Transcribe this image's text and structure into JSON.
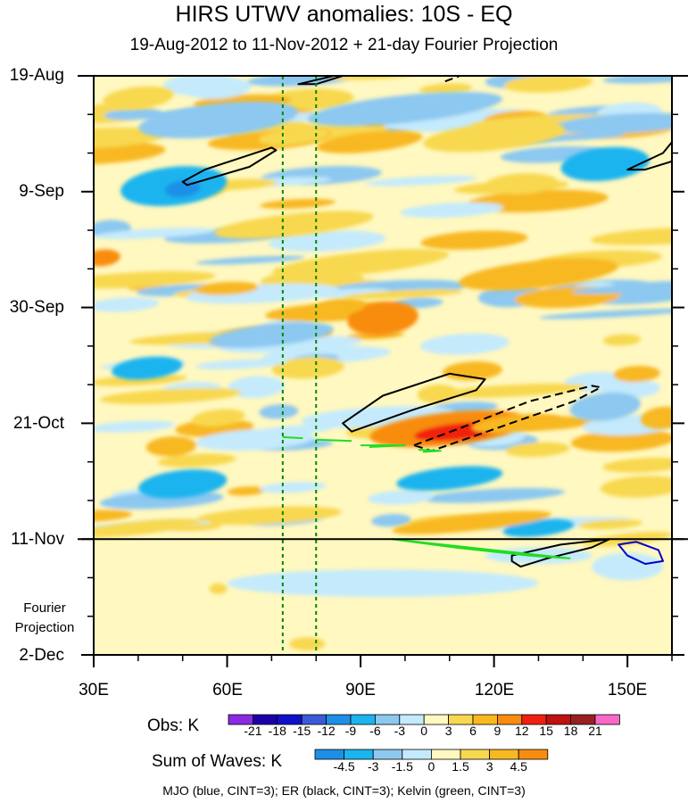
{
  "colors": {
    "obs": [
      "#8a2be2",
      "#1a00a8",
      "#1010cc",
      "#3a5ad8",
      "#1e8fe6",
      "#1ab4ee",
      "#8cc8f0",
      "#c4eafc",
      "#fff8c0",
      "#f8d850",
      "#f8b820",
      "#f88c10",
      "#f02010",
      "#c01010",
      "#982020",
      "#f868c8"
    ],
    "waves": [
      "#1e8fe6",
      "#1ab4ee",
      "#8cc8f0",
      "#c4eafc",
      "#fff8c0",
      "#f8d850",
      "#f8b820",
      "#f88c10"
    ],
    "mjo": "#0000cc",
    "er": "#000000",
    "kelvin": "#22dd22",
    "meridian": "#008800"
  },
  "chart_data": {
    "type": "heatmap",
    "title": "HIRS UTWV anomalies: 10S - EQ",
    "subtitle": "19-Aug-2012 to 11-Nov-2012 + 21-day Fourier Projection",
    "x_axis": {
      "range": [
        30,
        160
      ],
      "ticks": [
        {
          "value": 30,
          "label": "30E"
        },
        {
          "value": 60,
          "label": "60E"
        },
        {
          "value": 90,
          "label": "90E"
        },
        {
          "value": 120,
          "label": "120E"
        },
        {
          "value": 150,
          "label": "150E"
        }
      ],
      "minor_step": 10
    },
    "y_axis": {
      "range_days": [
        0,
        105
      ],
      "ticks": [
        {
          "day": 0,
          "label": "19-Aug"
        },
        {
          "day": 21,
          "label": "9-Sep"
        },
        {
          "day": 42,
          "label": "30-Sep"
        },
        {
          "day": 63,
          "label": "21-Oct"
        },
        {
          "day": 84,
          "label": "11-Nov"
        },
        {
          "day": 105,
          "label": "2-Dec"
        }
      ],
      "minor_step_days": 7,
      "projection_start_day": 84,
      "projection_label": "Fourier Projection"
    },
    "reference_lines_lon": [
      72.5,
      80
    ],
    "obs_blobs": [
      {
        "lon": 48,
        "day": 20,
        "rlon": 12,
        "rday": 3.5,
        "cls": 5
      },
      {
        "lon": 50,
        "day": 20.5,
        "rlon": 4,
        "rday": 1.5,
        "cls": 4
      },
      {
        "lon": 58,
        "day": 8,
        "rlon": 18,
        "rday": 3,
        "cls": 6
      },
      {
        "lon": 100,
        "day": 6,
        "rlon": 22,
        "rday": 2.5,
        "cls": 6
      },
      {
        "lon": 145,
        "day": 16,
        "rlon": 10,
        "rday": 3,
        "cls": 5
      },
      {
        "lon": 42,
        "day": 53,
        "rlon": 8,
        "rday": 2,
        "cls": 5
      },
      {
        "lon": 50,
        "day": 74,
        "rlon": 10,
        "rday": 2.5,
        "cls": 5
      },
      {
        "lon": 110,
        "day": 73,
        "rlon": 12,
        "rday": 2,
        "cls": 5
      },
      {
        "lon": 130,
        "day": 82,
        "rlon": 8,
        "rday": 1.5,
        "cls": 5
      },
      {
        "lon": 70,
        "day": 47,
        "rlon": 14,
        "rday": 2,
        "cls": 6
      },
      {
        "lon": 145,
        "day": 60,
        "rlon": 8,
        "rday": 2.5,
        "cls": 6
      },
      {
        "lon": 40,
        "day": 4,
        "rlon": 8,
        "rday": 2,
        "cls": 9
      },
      {
        "lon": 75,
        "day": 11,
        "rlon": 8,
        "rday": 1.5,
        "cls": 9
      },
      {
        "lon": 92,
        "day": 12,
        "rlon": 12,
        "rday": 1.8,
        "cls": 10
      },
      {
        "lon": 120,
        "day": 11,
        "rlon": 16,
        "rday": 2.5,
        "cls": 9
      },
      {
        "lon": 75,
        "day": 27,
        "rlon": 18,
        "rday": 2,
        "cls": 9
      },
      {
        "lon": 90,
        "day": 34,
        "rlon": 20,
        "rday": 2,
        "cls": 9
      },
      {
        "lon": 130,
        "day": 36,
        "rlon": 18,
        "rday": 2.5,
        "cls": 10
      },
      {
        "lon": 32,
        "day": 33,
        "rlon": 4,
        "rday": 1.5,
        "cls": 11
      },
      {
        "lon": 95,
        "day": 44,
        "rlon": 8,
        "rday": 3,
        "cls": 11
      },
      {
        "lon": 85,
        "day": 42,
        "rlon": 6,
        "rday": 1.5,
        "cls": 10
      },
      {
        "lon": 110,
        "day": 64,
        "rlon": 18,
        "rday": 3,
        "cls": 11
      },
      {
        "lon": 112,
        "day": 64.5,
        "rlon": 10,
        "rday": 1.5,
        "cls": 12
      },
      {
        "lon": 125,
        "day": 63,
        "rlon": 10,
        "rday": 1.5,
        "cls": 10
      },
      {
        "lon": 158,
        "day": 62,
        "rlon": 5,
        "rday": 2,
        "cls": 10
      },
      {
        "lon": 58,
        "day": 62,
        "rlon": 6,
        "rday": 1.5,
        "cls": 9
      },
      {
        "lon": 115,
        "day": 81,
        "rlon": 18,
        "rday": 1.5,
        "cls": 10
      },
      {
        "lon": 40,
        "day": 82,
        "rlon": 14,
        "rday": 1.2,
        "cls": 9
      },
      {
        "lon": 150,
        "day": 84,
        "rlon": 10,
        "rday": 1,
        "cls": 9
      }
    ],
    "projection_field": {
      "background_cls": 4,
      "blobs": [
        {
          "lon": 130,
          "day": 87,
          "rlon": 12,
          "rday": 1.5,
          "cls": 3
        },
        {
          "lon": 95,
          "day": 92,
          "rlon": 35,
          "rday": 2.5,
          "cls": 3
        },
        {
          "lon": 150,
          "day": 89,
          "rlon": 8,
          "rday": 2.5,
          "cls": 3
        },
        {
          "lon": 78,
          "day": 103,
          "rlon": 4,
          "rday": 1.2,
          "cls": 5
        },
        {
          "lon": 58,
          "day": 93,
          "rlon": 2,
          "rday": 1,
          "cls": 5
        }
      ]
    },
    "contours": [
      {
        "wave": "ER",
        "style": "solid",
        "points": [
          [
            50,
            19.2
          ],
          [
            55,
            17
          ],
          [
            70,
            13
          ],
          [
            71,
            13.5
          ],
          [
            65,
            16.5
          ],
          [
            51,
            19.8
          ]
        ]
      },
      {
        "wave": "ER",
        "style": "solid",
        "points": [
          [
            76,
            1.5
          ],
          [
            84,
            0
          ],
          [
            88,
            -0.5
          ],
          [
            80,
            1.5
          ]
        ]
      },
      {
        "wave": "ER",
        "style": "dashed",
        "points": [
          [
            109,
            1
          ],
          [
            114,
            -0.5
          ]
        ]
      },
      {
        "wave": "ER",
        "style": "solid",
        "points": [
          [
            150,
            17
          ],
          [
            158,
            14
          ],
          [
            160,
            12
          ],
          [
            160,
            15.5
          ],
          [
            154,
            17
          ]
        ]
      },
      {
        "wave": "ER",
        "style": "solid",
        "points": [
          [
            86,
            63
          ],
          [
            95,
            58
          ],
          [
            110,
            54
          ],
          [
            118,
            55
          ],
          [
            116,
            57
          ],
          [
            102,
            60.5
          ],
          [
            88,
            64.5
          ]
        ]
      },
      {
        "wave": "ER",
        "style": "dashed",
        "points": [
          [
            102,
            67
          ],
          [
            112,
            64
          ],
          [
            128,
            59
          ],
          [
            142,
            56.2
          ],
          [
            144,
            56.5
          ],
          [
            138,
            59
          ],
          [
            122,
            63.5
          ],
          [
            106,
            68
          ]
        ]
      },
      {
        "wave": "ER",
        "style": "solid",
        "points": [
          [
            124,
            87
          ],
          [
            135,
            85
          ],
          [
            146,
            84
          ],
          [
            142,
            85.5
          ],
          [
            132,
            87.5
          ],
          [
            126,
            89
          ],
          [
            124,
            88
          ]
        ]
      },
      {
        "wave": "MJO",
        "style": "solid",
        "points": [
          [
            148,
            85
          ],
          [
            152,
            84.5
          ],
          [
            157,
            86
          ],
          [
            158,
            88
          ],
          [
            154,
            88.5
          ],
          [
            150,
            87
          ],
          [
            148,
            85
          ]
        ]
      },
      {
        "wave": "Kelvin",
        "style": "solid",
        "points": [
          [
            72.5,
            65.5
          ],
          [
            77,
            65.7
          ]
        ]
      },
      {
        "wave": "Kelvin",
        "style": "solid",
        "points": [
          [
            80,
            66
          ],
          [
            88,
            66.2
          ]
        ]
      },
      {
        "wave": "Kelvin",
        "style": "solid",
        "points": [
          [
            90,
            67
          ],
          [
            100,
            67
          ],
          [
            92,
            67.3
          ]
        ]
      },
      {
        "wave": "Kelvin",
        "style": "solid",
        "points": [
          [
            103,
            67.8
          ],
          [
            108,
            68
          ],
          [
            104,
            68.2
          ]
        ]
      },
      {
        "wave": "Kelvin",
        "style": "solid",
        "points": [
          [
            97,
            84
          ],
          [
            120,
            86
          ],
          [
            137,
            87.5
          ],
          [
            128,
            87
          ],
          [
            112,
            85.6
          ]
        ]
      }
    ],
    "obs_legend": {
      "title": "Obs: K",
      "tick_labels": [
        "-21",
        "-18",
        "-15",
        "-12",
        "-9",
        "-6",
        "-3",
        "0",
        "3",
        "6",
        "9",
        "12",
        "15",
        "18",
        "21"
      ]
    },
    "waves_legend": {
      "title": "Sum of Waves: K",
      "tick_labels": [
        "-4.5",
        "-3",
        "-1.5",
        "0",
        "1.5",
        "3",
        "4.5"
      ]
    },
    "caption": "MJO (blue, CINT=3); ER (black, CINT=3); Kelvin (green, CINT=3)"
  }
}
